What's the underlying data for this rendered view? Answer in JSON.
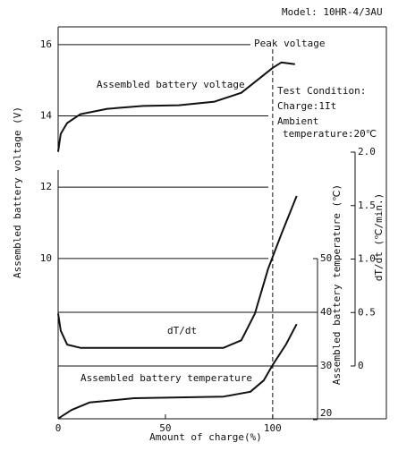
{
  "chart_data": {
    "type": "line",
    "model": "Model: 10HR-4/3AU",
    "xlabel": "Amount of charge(%)",
    "ylabel": "Assembled battery voltage (V)",
    "y2label": "Assembled battery temperature (℃)",
    "y3label": "dT/dt (℃/min.)",
    "xlim": [
      0,
      153
    ],
    "xticks": [
      0,
      50,
      100
    ],
    "ylim": [
      5.5,
      16.5
    ],
    "yticks": [
      10,
      12,
      14,
      16
    ],
    "y2lim": [
      20,
      50
    ],
    "y2ticks": [
      20,
      30,
      40,
      50
    ],
    "y3lim": [
      0,
      2
    ],
    "y3ticks": [
      0,
      0.5,
      {
        "value": 1,
        "label": "1.0"
      },
      1.5,
      {
        "value": 2,
        "label": "2.0"
      }
    ],
    "vline": {
      "x": 100,
      "label": "Peak voltage"
    },
    "annotations": [
      "Test Condition:",
      "Charge:1It",
      "Ambient",
      "temperature:20℃"
    ],
    "series": [
      {
        "name": "Assembled battery voltage",
        "axis": "y",
        "color": "#111",
        "x": [
          0,
          1.2,
          4.2,
          10.4,
          22.9,
          39.6,
          56.3,
          72.9,
          85.4,
          93.8,
          100,
          104,
          110.4
        ],
        "values": [
          13.0,
          13.5,
          13.8,
          14.05,
          14.2,
          14.28,
          14.3,
          14.4,
          14.65,
          15.05,
          15.35,
          15.5,
          15.45
        ]
      },
      {
        "name": "dT/dt",
        "axis": "y3",
        "color": "#111",
        "x": [
          0,
          1.2,
          4.2,
          10.4,
          35.4,
          77.1,
          85.4,
          91.7,
          97.9,
          104.2,
          111.2
        ],
        "values": [
          0.49,
          0.33,
          0.2,
          0.17,
          0.17,
          0.17,
          0.24,
          0.49,
          0.91,
          1.24,
          1.59
        ]
      },
      {
        "name": "Assembled battery temperature",
        "axis": "y2",
        "color": "#111",
        "x": [
          0,
          6.2,
          14.6,
          35.4,
          77.1,
          89.6,
          95.8,
          100,
          106.2,
          111.2
        ],
        "values": [
          20.2,
          21.8,
          23.2,
          24,
          24.3,
          25.2,
          27.3,
          30.2,
          34,
          37.8
        ]
      }
    ]
  }
}
